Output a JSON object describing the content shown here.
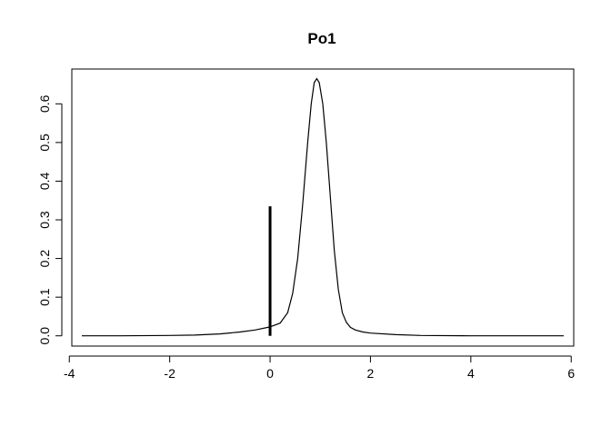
{
  "chart_data": {
    "type": "line",
    "title": "Po1",
    "xlabel": "",
    "ylabel": "",
    "xlim": [
      -3.95,
      6.05
    ],
    "ylim": [
      -0.0265,
      0.69
    ],
    "x_ticks": [
      -4,
      -2,
      0,
      2,
      4,
      6
    ],
    "y_ticks": [
      0.0,
      0.1,
      0.2,
      0.3,
      0.4,
      0.5,
      0.6
    ],
    "x_tick_labels": [
      "-4",
      "-2",
      "0",
      "2",
      "4",
      "6"
    ],
    "y_tick_labels": [
      "0.0",
      "0.1",
      "0.2",
      "0.3",
      "0.4",
      "0.5",
      "0.6"
    ],
    "grid": false,
    "series": [
      {
        "x": [
          -3.75,
          -3.0,
          -2.0,
          -1.5,
          -1.0,
          -0.6,
          -0.3,
          0.0,
          0.2,
          0.35,
          0.45,
          0.55,
          0.65,
          0.75,
          0.82,
          0.88,
          0.93,
          0.98,
          1.05,
          1.12,
          1.2,
          1.28,
          1.36,
          1.44,
          1.52,
          1.6,
          1.7,
          1.85,
          2.0,
          2.5,
          3.0,
          4.0,
          5.0,
          5.85
        ],
        "y": [
          0.0,
          0.0,
          0.001,
          0.002,
          0.005,
          0.01,
          0.015,
          0.023,
          0.033,
          0.06,
          0.11,
          0.2,
          0.34,
          0.5,
          0.6,
          0.655,
          0.665,
          0.655,
          0.6,
          0.5,
          0.36,
          0.22,
          0.12,
          0.06,
          0.035,
          0.022,
          0.015,
          0.01,
          0.007,
          0.003,
          0.001,
          0.0,
          0.0,
          0.0
        ]
      }
    ],
    "segments": [
      {
        "x": 0,
        "y0": 0,
        "y1": 0.335
      }
    ],
    "colors": {
      "line": "#000000",
      "axis": "#000000",
      "background": "#ffffff"
    }
  }
}
